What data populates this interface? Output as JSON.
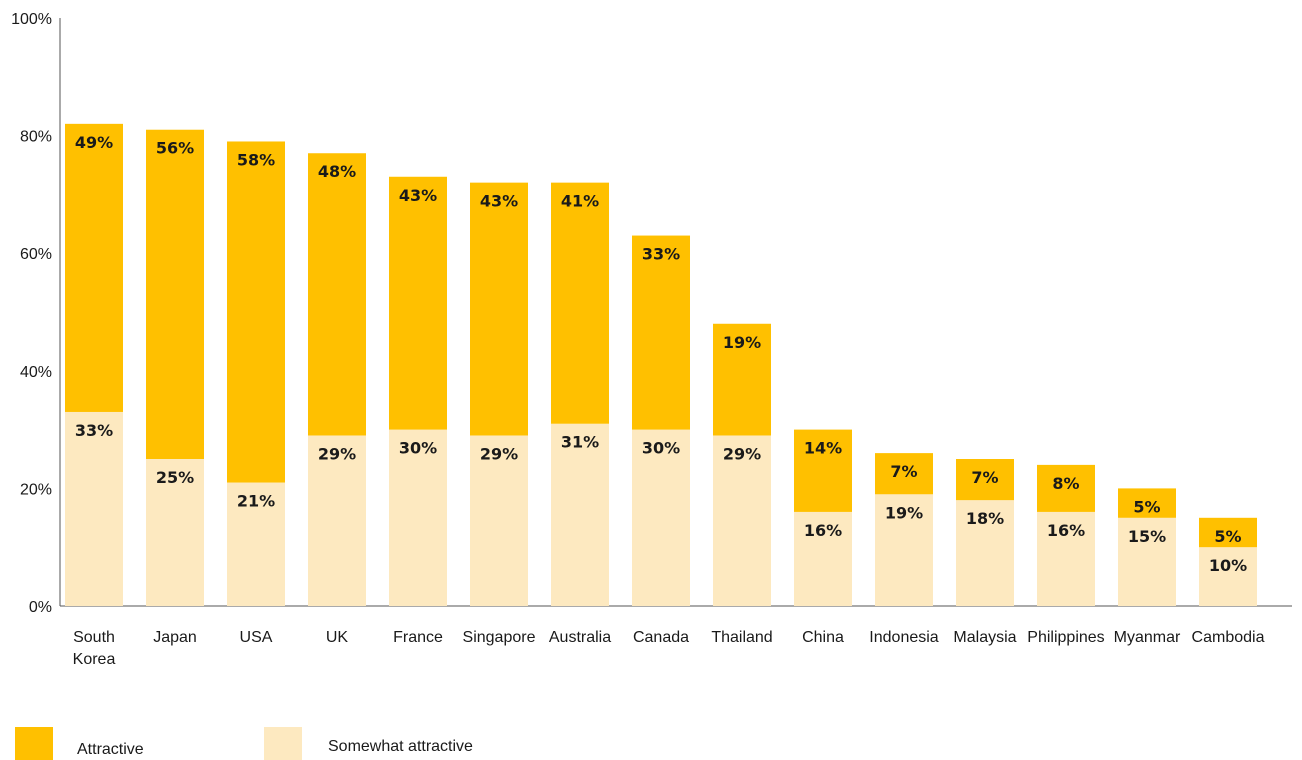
{
  "chart_data": {
    "type": "bar",
    "stacked": true,
    "categories": [
      "South Korea",
      "Japan",
      "USA",
      "UK",
      "France",
      "Singapore",
      "Australia",
      "Canada",
      "Thailand",
      "China",
      "Indonesia",
      "Malaysia",
      "Philippines",
      "Myanmar",
      "Cambodia"
    ],
    "category_lines": [
      [
        "South",
        "Korea"
      ],
      [
        "Japan"
      ],
      [
        "USA"
      ],
      [
        "UK"
      ],
      [
        "France"
      ],
      [
        "Singapore"
      ],
      [
        "Australia"
      ],
      [
        "Canada"
      ],
      [
        "Thailand"
      ],
      [
        "China"
      ],
      [
        "Indonesia"
      ],
      [
        "Malaysia"
      ],
      [
        "Philippines"
      ],
      [
        "Myanmar"
      ],
      [
        "Cambodia"
      ]
    ],
    "series": [
      {
        "name": "Somewhat attractive",
        "color": "#FDE9C0",
        "values": [
          33,
          25,
          21,
          29,
          30,
          29,
          31,
          30,
          29,
          16,
          19,
          18,
          16,
          15,
          10
        ],
        "labels": [
          "33%",
          "25%",
          "21%",
          "29%",
          "30%",
          "29%",
          "31%",
          "30%",
          "29%",
          "16%",
          "19%",
          "18%",
          "16%",
          "15%",
          "10%"
        ]
      },
      {
        "name": "Attractive",
        "color": "#FFC000",
        "values": [
          49,
          56,
          58,
          48,
          43,
          43,
          41,
          33,
          19,
          14,
          7,
          7,
          8,
          5,
          5
        ],
        "labels": [
          "49%",
          "56%",
          "58%",
          "48%",
          "43%",
          "43%",
          "41%",
          "33%",
          "19%",
          "14%",
          "7%",
          "7%",
          "8%",
          "5%",
          "5%"
        ]
      }
    ],
    "ylim": [
      0,
      100
    ],
    "yticks": [
      0,
      20,
      40,
      60,
      80,
      100
    ],
    "ytick_labels": [
      "0%",
      "20%",
      "40%",
      "60%",
      "80%",
      "100%"
    ],
    "grid": false,
    "legend": {
      "position": "bottom-left",
      "items": [
        {
          "label": "Attractive",
          "color": "#FFC000"
        },
        {
          "label": "Somewhat attractive",
          "color": "#FDE9C0"
        }
      ]
    },
    "title": "",
    "xlabel": "",
    "ylabel": ""
  }
}
